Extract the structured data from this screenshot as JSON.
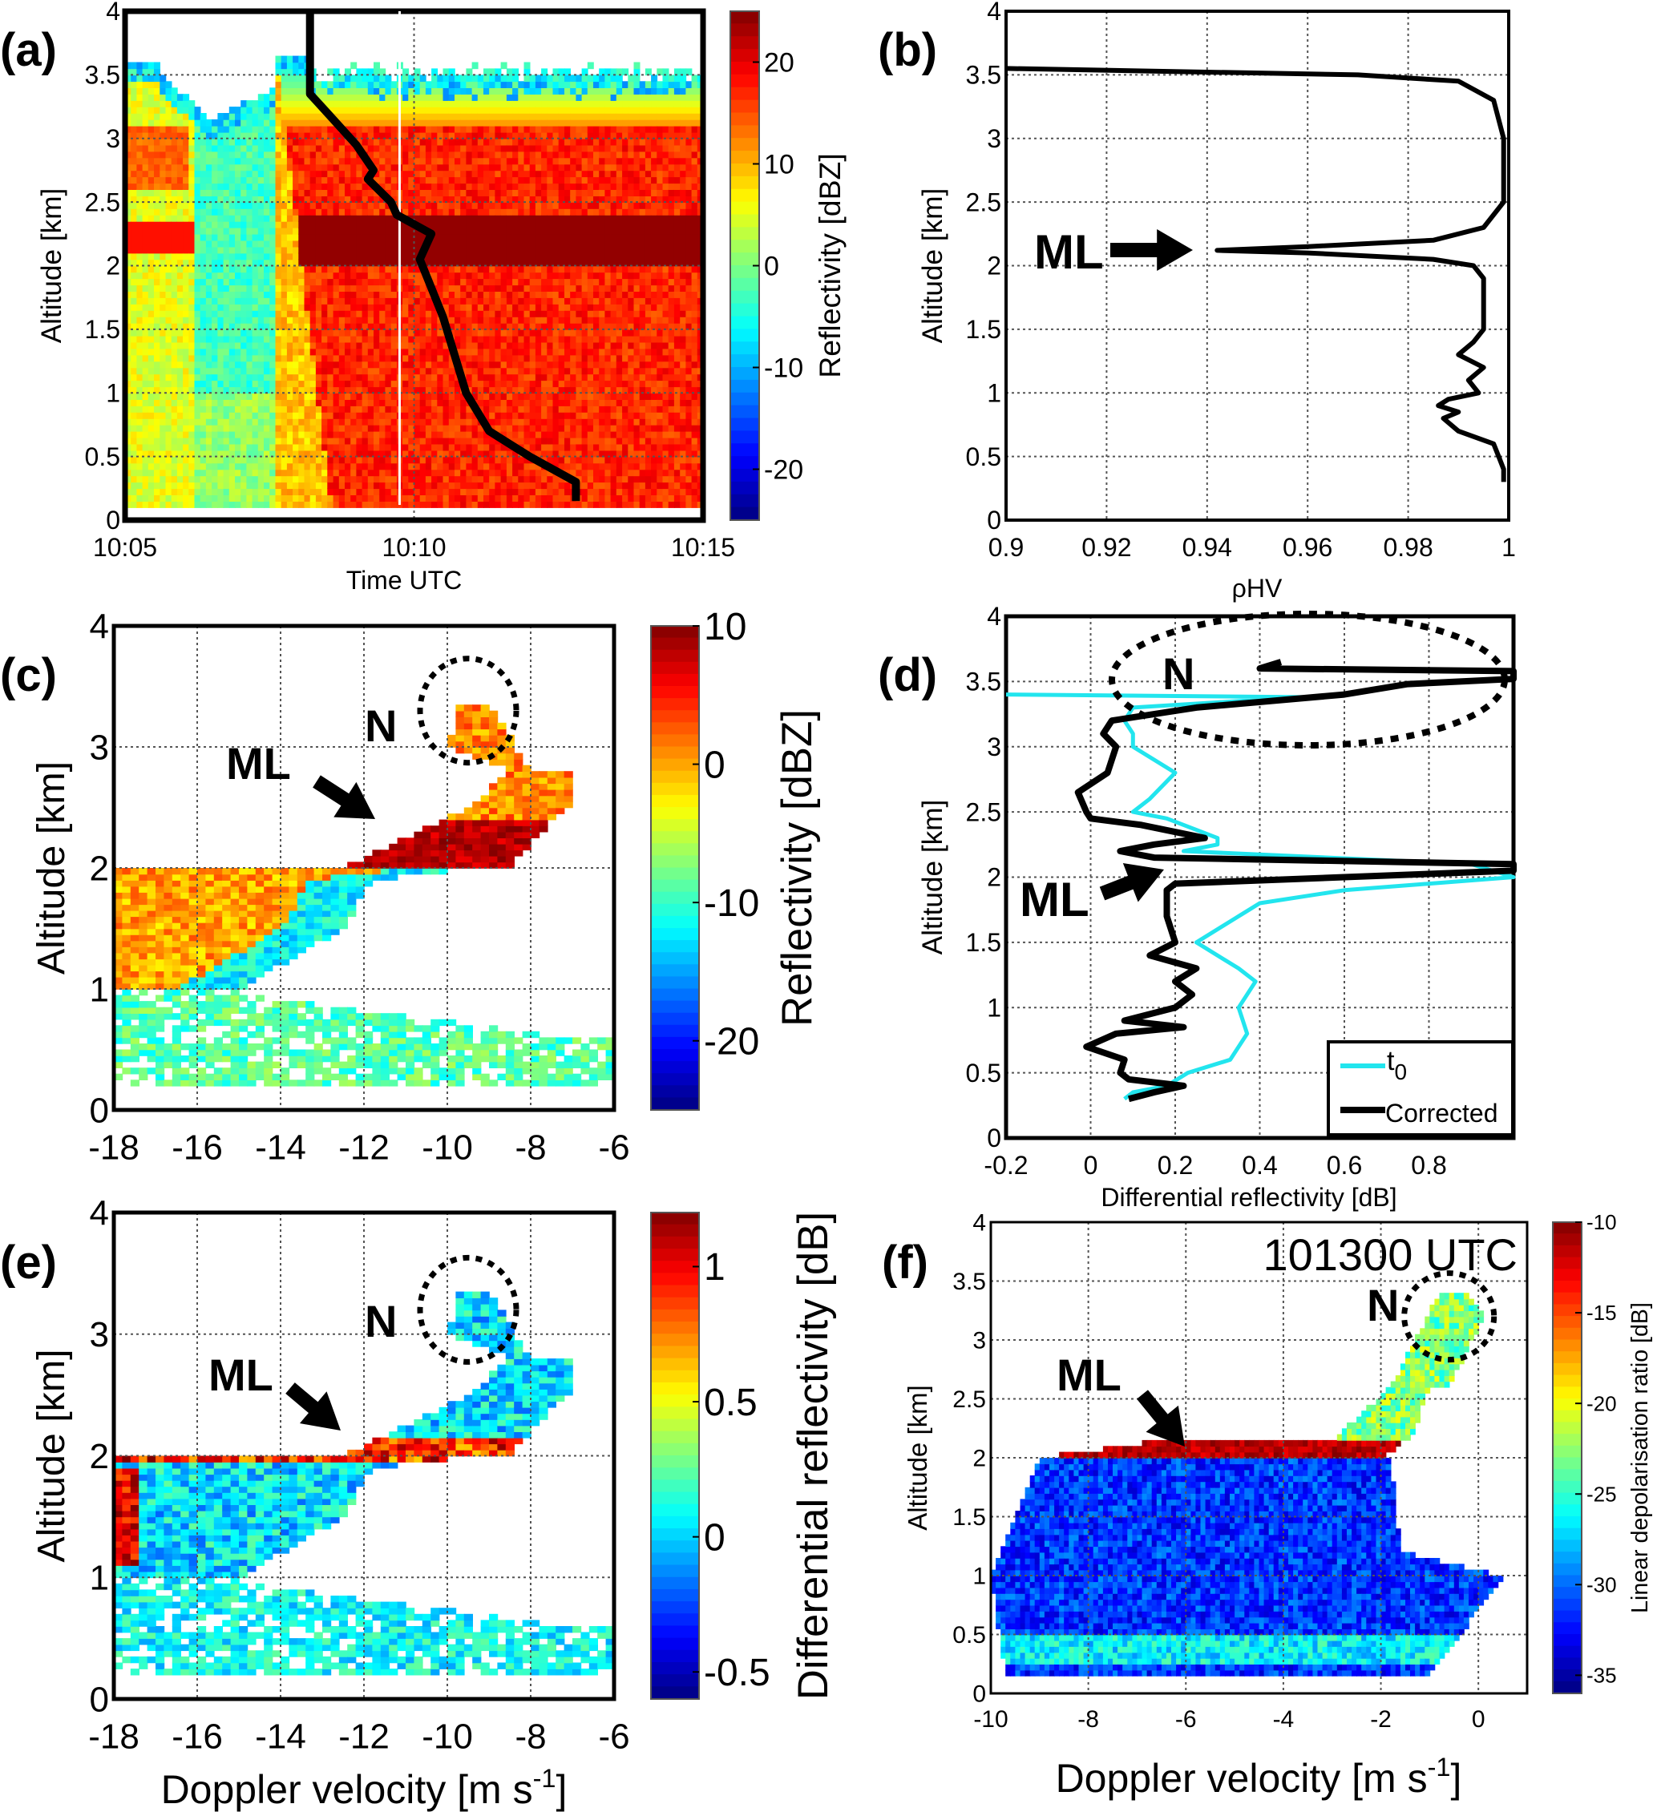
{
  "chart_data": [
    {
      "id": "a",
      "panel_label": "(a)",
      "type": "heatmap",
      "xlabel": "Time UTC",
      "ylabel": "Altitude [km]",
      "xticks": [
        "10:05",
        "10:10",
        "10:15"
      ],
      "xlim_minutes": [
        5,
        15
      ],
      "ylim": [
        0,
        4
      ],
      "yticks": [
        0,
        0.5,
        1,
        1.5,
        2,
        2.5,
        3,
        3.5,
        4
      ],
      "colorbar": {
        "label": "Reflectivity [dBZ]",
        "ticks": [
          20,
          10,
          0,
          -10,
          -20
        ],
        "range": [
          -25,
          25
        ],
        "colormap": "jet"
      },
      "overlay_line": {
        "color": "#000000",
        "time_minutes": [
          8.2,
          8.2,
          8.5,
          9.0,
          9.3,
          9.2,
          9.6,
          9.7,
          10.3,
          10.1,
          10.5,
          10.9,
          11.3,
          12.0,
          12.8,
          12.8
        ],
        "altitude": [
          4.0,
          3.35,
          3.2,
          2.95,
          2.75,
          2.68,
          2.5,
          2.4,
          2.25,
          2.05,
          1.6,
          1.0,
          0.7,
          0.5,
          0.3,
          0.15
        ]
      },
      "vertical_marker_minutes": 9.75
    },
    {
      "id": "b",
      "panel_label": "(b)",
      "type": "line",
      "xlabel": "ρHV",
      "ylabel": "Altitude [km]",
      "xlim": [
        0.9,
        1
      ],
      "ylim": [
        0,
        4
      ],
      "xticks": [
        0.9,
        0.92,
        0.94,
        0.96,
        0.98,
        1
      ],
      "yticks": [
        0,
        0.5,
        1,
        1.5,
        2,
        2.5,
        3,
        3.5,
        4
      ],
      "annotations": [
        {
          "text": "ML",
          "type": "arrow"
        }
      ],
      "series": [
        {
          "color": "#000000",
          "altitude": [
            3.55,
            3.5,
            3.45,
            3.3,
            3.0,
            2.5,
            2.3,
            2.2,
            2.15,
            2.12,
            2.1,
            2.05,
            2.0,
            1.9,
            1.5,
            1.4,
            1.3,
            1.2,
            1.1,
            1.0,
            0.95,
            0.9,
            0.85,
            0.8,
            0.7,
            0.6,
            0.5,
            0.4,
            0.3
          ],
          "value": [
            0.9,
            0.97,
            0.99,
            0.997,
            0.999,
            0.999,
            0.995,
            0.985,
            0.96,
            0.942,
            0.96,
            0.985,
            0.993,
            0.995,
            0.995,
            0.993,
            0.99,
            0.995,
            0.992,
            0.994,
            0.988,
            0.986,
            0.99,
            0.987,
            0.99,
            0.997,
            0.998,
            0.999,
            0.999
          ]
        }
      ]
    },
    {
      "id": "c",
      "panel_label": "(c)",
      "type": "heatmap",
      "xlabel": "",
      "ylabel": "Altitude [km]",
      "xlim": [
        -18,
        -6
      ],
      "ylim": [
        0,
        4
      ],
      "xticks": [
        -18,
        -16,
        -14,
        -12,
        -10,
        -8,
        -6
      ],
      "yticks": [
        0,
        1,
        2,
        3,
        4
      ],
      "colorbar": {
        "label": "Reflectivity [dBZ]",
        "ticks": [
          10,
          0,
          -10,
          -20
        ],
        "range": [
          -25,
          10
        ],
        "colormap": "jet"
      },
      "annotations": [
        {
          "text": "N",
          "type": "dotted-circle"
        },
        {
          "text": "ML",
          "type": "arrow"
        }
      ]
    },
    {
      "id": "d",
      "panel_label": "(d)",
      "type": "line",
      "xlabel": "Differential reflectivity [dB]",
      "ylabel": "Altitude [km]",
      "xlim": [
        -0.2,
        1
      ],
      "ylim": [
        0,
        4
      ],
      "xticks": [
        -0.2,
        0,
        0.2,
        0.4,
        0.6,
        0.8
      ],
      "yticks": [
        0,
        0.5,
        1,
        1.5,
        2,
        2.5,
        3,
        3.5,
        4
      ],
      "annotations": [
        {
          "text": "N",
          "type": "dotted-ellipse"
        },
        {
          "text": "ML",
          "type": "arrow"
        }
      ],
      "legend": {
        "position": "bottom-right",
        "entries": [
          {
            "label": "t",
            "sub": "0",
            "color": "#22e5ee"
          },
          {
            "label": "Corrected",
            "color": "#000000"
          }
        ]
      },
      "series": [
        {
          "name": "t0",
          "color": "#22e5ee",
          "altitude": [
            3.4,
            3.38,
            3.3,
            3.2,
            3.1,
            3.0,
            2.8,
            2.6,
            2.5,
            2.45,
            2.3,
            2.25,
            2.2,
            2.1,
            2.0,
            1.9,
            1.8,
            1.7,
            1.5,
            1.3,
            1.2,
            1.0,
            0.8,
            0.6,
            0.5,
            0.4,
            0.35,
            0.3
          ],
          "value": [
            -0.2,
            0.5,
            0.1,
            0.08,
            0.1,
            0.1,
            0.2,
            0.14,
            0.1,
            0.18,
            0.3,
            0.3,
            0.22,
            0.9,
            1.0,
            0.6,
            0.4,
            0.35,
            0.25,
            0.35,
            0.39,
            0.35,
            0.37,
            0.33,
            0.23,
            0.18,
            0.1,
            0.08
          ]
        },
        {
          "name": "Corrected",
          "color": "#000000",
          "altitude": [
            3.65,
            3.6,
            3.58,
            3.52,
            3.48,
            3.4,
            3.3,
            3.2,
            3.1,
            3.0,
            2.8,
            2.65,
            2.5,
            2.45,
            2.4,
            2.3,
            2.25,
            2.2,
            2.15,
            2.1,
            2.05,
            2.0,
            1.95,
            1.9,
            1.7,
            1.5,
            1.4,
            1.3,
            1.2,
            1.1,
            1.0,
            0.9,
            0.85,
            0.8,
            0.7,
            0.6,
            0.5,
            0.45,
            0.4,
            0.35,
            0.3
          ],
          "value": [
            0.45,
            0.4,
            1.0,
            1.0,
            0.75,
            0.6,
            0.25,
            0.05,
            0.03,
            0.06,
            0.04,
            -0.03,
            -0.01,
            0.0,
            0.12,
            0.27,
            0.15,
            0.07,
            0.15,
            1.0,
            1.0,
            0.6,
            0.2,
            0.18,
            0.18,
            0.2,
            0.14,
            0.25,
            0.2,
            0.24,
            0.2,
            0.08,
            0.22,
            0.06,
            -0.01,
            0.08,
            0.07,
            0.09,
            0.22,
            0.15,
            0.09
          ]
        }
      ]
    },
    {
      "id": "e",
      "panel_label": "(e)",
      "type": "heatmap",
      "xlabel": "Doppler velocity [m s",
      "xlabel_sup": "-1",
      "xlabel_end": "]",
      "ylabel": "Altitude [km]",
      "xlim": [
        -18,
        -6
      ],
      "ylim": [
        0,
        4
      ],
      "xticks": [
        -18,
        -16,
        -14,
        -12,
        -10,
        -8,
        -6
      ],
      "yticks": [
        0,
        1,
        2,
        3,
        4
      ],
      "colorbar": {
        "label": "Differential reflectivity [dB]",
        "ticks": [
          1,
          0.5,
          0,
          -0.5
        ],
        "range": [
          -0.6,
          1.2
        ],
        "colormap": "jet"
      },
      "annotations": [
        {
          "text": "N",
          "type": "dotted-circle"
        },
        {
          "text": "ML",
          "type": "arrow"
        }
      ]
    },
    {
      "id": "f",
      "panel_label": "(f)",
      "type": "heatmap",
      "xlabel": "Doppler velocity [m s",
      "xlabel_sup": "-1",
      "xlabel_end": "]",
      "ylabel": "Altitude [km]",
      "xlim": [
        -10,
        1
      ],
      "ylim": [
        0,
        4
      ],
      "xticks": [
        -10,
        -8,
        -6,
        -4,
        -2,
        0
      ],
      "yticks": [
        0,
        0.5,
        1,
        1.5,
        2,
        2.5,
        3,
        3.5,
        4
      ],
      "time_label": "101300 UTC",
      "colorbar": {
        "label": "Linear depolarisation ratio [dB]",
        "ticks": [
          -10,
          -15,
          -20,
          -25,
          -30,
          -35
        ],
        "range": [
          -36,
          -10
        ],
        "colormap": "jet"
      },
      "annotations": [
        {
          "text": "N",
          "type": "dotted-circle"
        },
        {
          "text": "ML",
          "type": "arrow"
        }
      ]
    }
  ]
}
